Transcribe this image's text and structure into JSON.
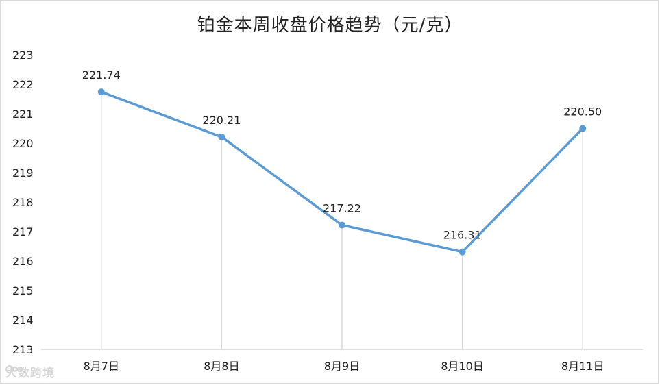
{
  "chart_data": {
    "type": "line",
    "title": "铂金本周收盘价格趋势（元/克）",
    "categories": [
      "8月7日",
      "8月8日",
      "8月9日",
      "8月10日",
      "8月11日"
    ],
    "series": [
      {
        "values": [
          221.74,
          220.21,
          217.22,
          216.31,
          220.5
        ]
      }
    ],
    "data_labels": [
      "221.74",
      "220.21",
      "217.22",
      "216.31",
      "220.50"
    ],
    "y_ticks": [
      "213",
      "214",
      "215",
      "216",
      "217",
      "218",
      "219",
      "220",
      "221",
      "222",
      "223"
    ],
    "ylim": [
      213,
      223
    ],
    "grid": "vertical drop lines at each category",
    "line_color": "#5b9bd5",
    "drop_line_color": "#d9d9d9"
  },
  "watermark": {
    "text": "大数跨境",
    "icon": "brand-logo-icon"
  }
}
